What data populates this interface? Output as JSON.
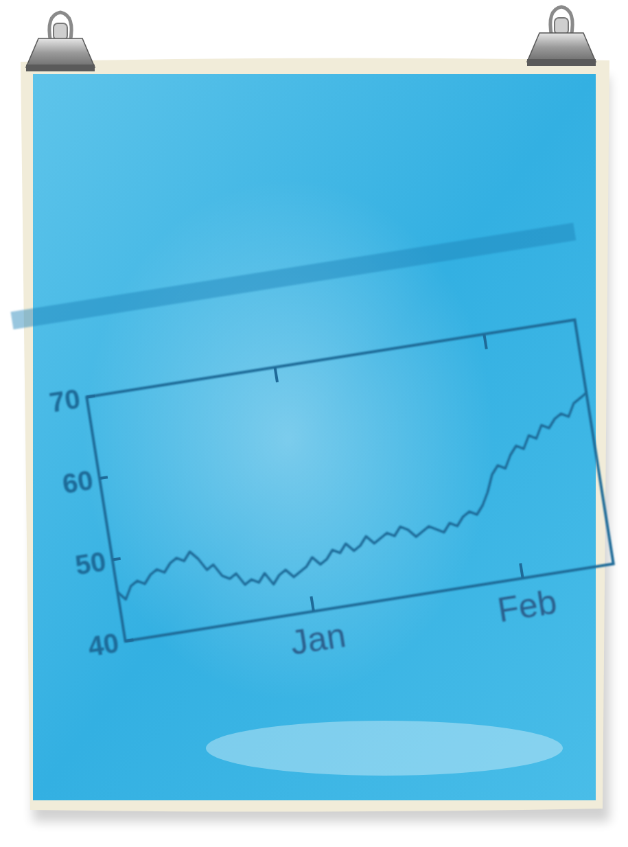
{
  "chart_data": {
    "type": "line",
    "x": [
      0,
      1,
      2,
      3,
      4,
      5,
      6,
      7,
      8,
      9,
      10,
      11,
      12,
      13,
      14,
      15,
      16,
      17,
      18,
      19,
      20,
      21,
      22,
      23,
      24,
      25,
      26,
      27,
      28,
      29,
      30,
      31,
      32,
      33,
      34,
      35,
      36,
      37,
      38,
      39,
      40,
      41,
      42,
      43,
      44,
      45,
      46,
      47,
      48,
      49,
      50,
      51,
      52,
      53,
      54,
      55,
      56,
      57,
      58,
      59,
      60,
      61,
      62,
      63,
      64,
      65,
      66,
      67,
      68,
      69,
      70
    ],
    "values": [
      46,
      45,
      46.5,
      47,
      46.5,
      47.5,
      48,
      47.5,
      48.5,
      49,
      48.5,
      49.5,
      48.5,
      47,
      47.5,
      46,
      45.5,
      46,
      44.5,
      45,
      44.5,
      45.5,
      44,
      45,
      45.5,
      44.5,
      45,
      45.5,
      46.5,
      45.5,
      46,
      47,
      46.5,
      47.5,
      46.5,
      47,
      48,
      47,
      47.5,
      48,
      47.5,
      48.5,
      48,
      47,
      47.5,
      48,
      47.5,
      47,
      48,
      47.5,
      48.5,
      49,
      48.5,
      49.5,
      51,
      53,
      54,
      53.5,
      55,
      56,
      55.5,
      57,
      56.5,
      58,
      57.5,
      58.5,
      59,
      58.5,
      60,
      60.5,
      61
    ],
    "color": "#1f6a98",
    "xlim": [
      0,
      70
    ],
    "xticks": [
      {
        "value": 27,
        "label": "Jan"
      },
      {
        "value": 57,
        "label": "Feb"
      }
    ],
    "ylim": [
      40,
      70
    ],
    "yticks": [
      40,
      50,
      60,
      70
    ]
  }
}
